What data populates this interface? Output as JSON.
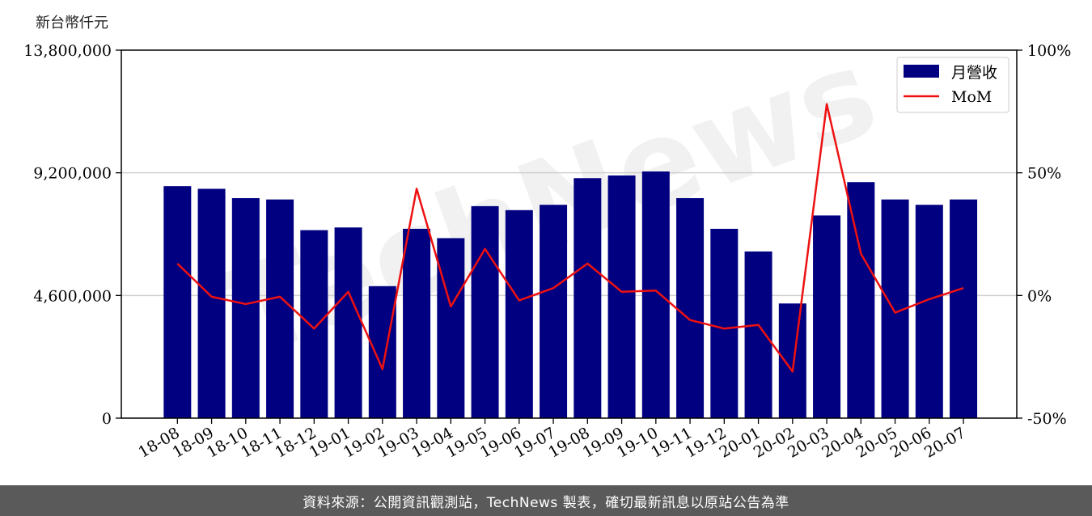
{
  "unit_label": "新台幣仟元",
  "footer_text": "資料來源：公開資訊觀測站，TechNews 製表，確切最新訊息以原站公告為準",
  "watermark": "TechNews",
  "colors": {
    "bar": "#000080",
    "line": "#ee1111",
    "grid": "#d0d0d0",
    "footer_bg": "#5a5a5a"
  },
  "chart_data": {
    "type": "bar",
    "categories": [
      "18-08",
      "18-09",
      "18-10",
      "18-11",
      "18-12",
      "19-01",
      "19-02",
      "19-03",
      "19-04",
      "19-05",
      "19-06",
      "19-07",
      "19-08",
      "19-09",
      "19-10",
      "19-11",
      "19-12",
      "20-01",
      "20-02",
      "20-03",
      "20-04",
      "20-05",
      "20-06",
      "20-07"
    ],
    "series": [
      {
        "name": "月營收",
        "axis": "left",
        "type": "bar",
        "values": [
          8700000,
          8600000,
          8250000,
          8200000,
          7050000,
          7150000,
          4950000,
          7100000,
          6750000,
          7950000,
          7800000,
          8000000,
          9000000,
          9100000,
          9250000,
          8250000,
          7100000,
          6250000,
          4300000,
          7600000,
          8850000,
          8200000,
          8000000,
          8200000
        ]
      },
      {
        "name": "MoM",
        "axis": "right",
        "type": "line",
        "unit": "%",
        "values": [
          13,
          -0.5,
          -3.5,
          -0.5,
          -13.5,
          1.5,
          -30,
          43.5,
          -4.5,
          19,
          -2,
          3,
          13,
          1.5,
          2,
          -10,
          -13.5,
          -12,
          -31,
          78,
          17,
          -7,
          -1.5,
          3
        ]
      }
    ],
    "ylim_left": [
      0,
      13800000
    ],
    "yticks_left": [
      "0",
      "4,600,000",
      "9,200,000",
      "13,800,000"
    ],
    "ylim_right": [
      -50,
      100
    ],
    "yticks_right": [
      "-50%",
      "0%",
      "50%",
      "100%"
    ],
    "grid": true,
    "legend_position": "top-right"
  }
}
